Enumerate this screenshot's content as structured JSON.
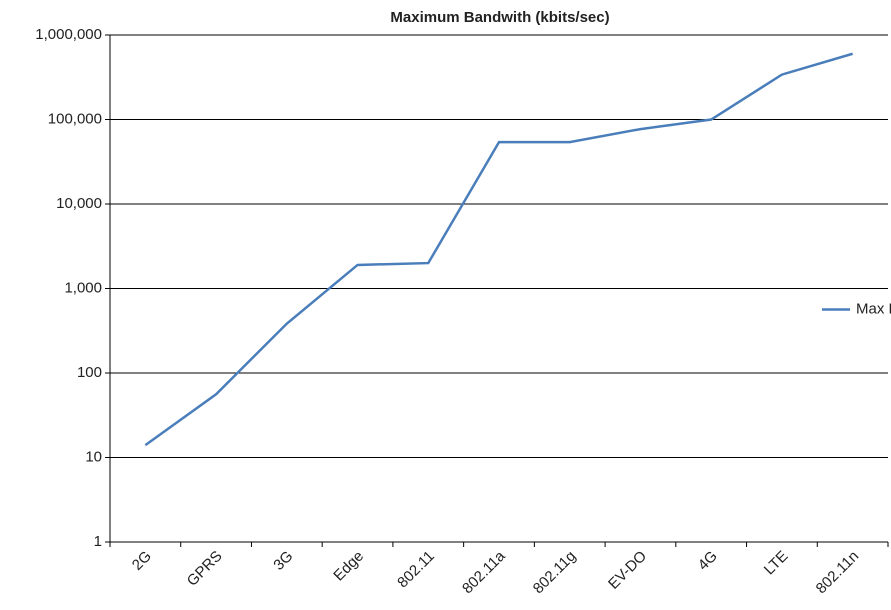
{
  "chart_data": {
    "type": "line",
    "title": "Maximum Bandwith (kbits/sec)",
    "categories": [
      "2G",
      "GPRS",
      "3G",
      "Edge",
      "802.11",
      "802.11a",
      "802.11g",
      "EV-DO",
      "4G",
      "LTE",
      "802.11n"
    ],
    "series": [
      {
        "name": "Max Rate (kbits/sec)",
        "color": "#4a7ebb",
        "values": [
          14,
          56,
          384,
          1900,
          2000,
          54000,
          54000,
          77000,
          100000,
          340000,
          600000
        ]
      }
    ],
    "ylim": [
      1,
      1000000
    ],
    "yticks": [
      1,
      10,
      100,
      {
        "value": 1000,
        "label": "1,000"
      },
      {
        "value": 10000,
        "label": "10,000"
      },
      {
        "value": 100000,
        "label": "100,000"
      },
      {
        "value": 1000000,
        "label": "1,000,000"
      }
    ],
    "log_scale": true,
    "grid": true,
    "legend": "right"
  }
}
